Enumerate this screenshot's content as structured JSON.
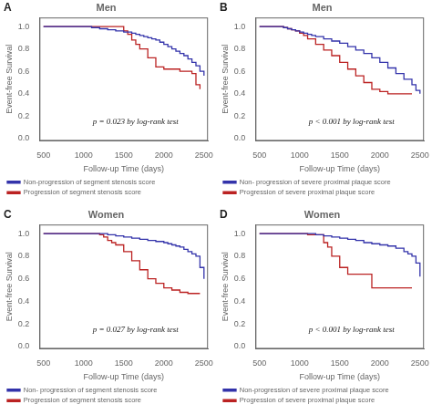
{
  "chart_data": [
    {
      "type": "step",
      "title": "Men",
      "annotations": [
        "A",
        "p = 0.023 by log-rank test"
      ],
      "xlabel": "Follow-up Time (days)",
      "ylabel": "Event-free Survival",
      "xlim": [
        450,
        2550
      ],
      "ylim": [
        -0.02,
        1.08
      ],
      "xticks": [
        500,
        1000,
        1500,
        2000,
        2500
      ],
      "yticks": [
        {
          "value": 0.0,
          "label": "0.0"
        },
        0.2,
        0.4,
        0.6,
        0.8,
        {
          "value": 1.0,
          "label": "1.0"
        }
      ],
      "grid": false,
      "legend": "lower left",
      "series": [
        {
          "name": "Non-progression of segment stenosis score",
          "color": "#3333aa",
          "x": [
            500,
            1000,
            1100,
            1200,
            1300,
            1400,
            1450,
            1500,
            1550,
            1600,
            1650,
            1700,
            1750,
            1800,
            1850,
            1900,
            1950,
            2000,
            2050,
            2100,
            2150,
            2200,
            2250,
            2300,
            2350,
            2400,
            2450,
            2500
          ],
          "values": [
            1.0,
            1.0,
            0.99,
            0.98,
            0.97,
            0.96,
            0.96,
            0.95,
            0.95,
            0.94,
            0.93,
            0.92,
            0.91,
            0.9,
            0.89,
            0.88,
            0.86,
            0.84,
            0.82,
            0.8,
            0.78,
            0.76,
            0.74,
            0.71,
            0.68,
            0.65,
            0.6,
            0.56
          ]
        },
        {
          "name": "Progression of segment stenosis score",
          "color": "#bb2222",
          "x": [
            500,
            1000,
            1100,
            1200,
            1300,
            1400,
            1450,
            1500,
            1550,
            1600,
            1650,
            1700,
            1800,
            1900,
            2000,
            2100,
            2200,
            2300,
            2350,
            2400,
            2450
          ],
          "values": [
            1.0,
            1.0,
            1.0,
            1.0,
            1.0,
            1.0,
            1.0,
            0.96,
            0.93,
            0.88,
            0.84,
            0.8,
            0.72,
            0.64,
            0.62,
            0.62,
            0.6,
            0.6,
            0.58,
            0.48,
            0.44
          ]
        }
      ]
    },
    {
      "type": "step",
      "title": "Men",
      "annotations": [
        "B",
        "p < 0.001 by log-rank test"
      ],
      "xlabel": "Follow-up Time (days)",
      "ylabel": "Event-free Survival",
      "xlim": [
        450,
        2550
      ],
      "ylim": [
        -0.02,
        1.08
      ],
      "xticks": [
        500,
        1000,
        1500,
        2000,
        2500
      ],
      "yticks": [
        {
          "value": 0.0,
          "label": "0.0"
        },
        0.2,
        0.4,
        0.6,
        0.8,
        {
          "value": 1.0,
          "label": "1.0"
        }
      ],
      "grid": false,
      "legend": "lower left",
      "series": [
        {
          "name": "Non- progression of severe proximal plaque score",
          "color": "#3333aa",
          "x": [
            500,
            700,
            800,
            850,
            900,
            950,
            1000,
            1050,
            1100,
            1150,
            1200,
            1300,
            1400,
            1500,
            1600,
            1700,
            1800,
            1900,
            2000,
            2100,
            2200,
            2300,
            2400,
            2450,
            2500
          ],
          "values": [
            1.0,
            1.0,
            0.99,
            0.98,
            0.97,
            0.96,
            0.95,
            0.94,
            0.93,
            0.92,
            0.91,
            0.89,
            0.87,
            0.85,
            0.82,
            0.79,
            0.76,
            0.72,
            0.68,
            0.63,
            0.58,
            0.53,
            0.48,
            0.43,
            0.4
          ]
        },
        {
          "name": "Progression of severe proximal plaque score",
          "color": "#bb2222",
          "x": [
            500,
            700,
            800,
            850,
            900,
            950,
            1000,
            1050,
            1100,
            1200,
            1300,
            1400,
            1500,
            1600,
            1700,
            1800,
            1900,
            2000,
            2100,
            2200,
            2300,
            2400
          ],
          "values": [
            1.0,
            1.0,
            0.99,
            0.98,
            0.97,
            0.96,
            0.94,
            0.92,
            0.89,
            0.84,
            0.79,
            0.74,
            0.68,
            0.62,
            0.56,
            0.5,
            0.44,
            0.42,
            0.4,
            0.4,
            0.4,
            0.4
          ]
        }
      ]
    },
    {
      "type": "step",
      "title": "Women",
      "annotations": [
        "C",
        "p = 0.027 by log-rank test"
      ],
      "xlabel": "Follow-up Time (days)",
      "ylabel": "Event-free Survival",
      "xlim": [
        450,
        2550
      ],
      "ylim": [
        -0.02,
        1.08
      ],
      "xticks": [
        500,
        1000,
        1500,
        2000,
        2500
      ],
      "yticks": [
        {
          "value": 0.0,
          "label": "0.0"
        },
        0.2,
        0.4,
        0.6,
        0.8,
        {
          "value": 1.0,
          "label": "1.0"
        }
      ],
      "grid": false,
      "legend": "lower left",
      "series": [
        {
          "name": "Non- progression of segment stenosis score",
          "color": "#3333aa",
          "x": [
            500,
            1100,
            1200,
            1300,
            1400,
            1500,
            1600,
            1700,
            1800,
            1900,
            2000,
            2050,
            2100,
            2150,
            2200,
            2250,
            2300,
            2350,
            2400,
            2450,
            2500
          ],
          "values": [
            1.0,
            1.0,
            1.0,
            0.99,
            0.98,
            0.97,
            0.96,
            0.95,
            0.94,
            0.93,
            0.92,
            0.91,
            0.9,
            0.89,
            0.88,
            0.86,
            0.84,
            0.82,
            0.8,
            0.7,
            0.6
          ]
        },
        {
          "name": "Progression of segment stenosis score",
          "color": "#bb2222",
          "x": [
            500,
            1100,
            1200,
            1250,
            1300,
            1350,
            1400,
            1500,
            1600,
            1700,
            1800,
            1900,
            2000,
            2100,
            2200,
            2300,
            2400,
            2450
          ],
          "values": [
            1.0,
            1.0,
            0.99,
            0.97,
            0.94,
            0.92,
            0.9,
            0.84,
            0.76,
            0.68,
            0.6,
            0.56,
            0.52,
            0.5,
            0.48,
            0.47,
            0.47,
            0.47
          ]
        }
      ]
    },
    {
      "type": "step",
      "title": "Women",
      "annotations": [
        "D",
        "p < 0.001 by log-rank test"
      ],
      "xlabel": "Follow-up Time (days)",
      "ylabel": "Event-free Survival",
      "xlim": [
        450,
        2550
      ],
      "ylim": [
        -0.02,
        1.08
      ],
      "xticks": [
        500,
        1000,
        1500,
        2000,
        2500
      ],
      "yticks": [
        {
          "value": 0.0,
          "label": "0.0"
        },
        0.2,
        0.4,
        0.6,
        0.8,
        {
          "value": 1.0,
          "label": "1.0"
        }
      ],
      "grid": false,
      "legend": "lower left",
      "series": [
        {
          "name": "Non-progression of severe proximal plaque score",
          "color": "#3333aa",
          "x": [
            500,
            1000,
            1100,
            1200,
            1300,
            1400,
            1500,
            1600,
            1700,
            1800,
            1900,
            2000,
            2100,
            2200,
            2300,
            2350,
            2400,
            2450,
            2500
          ],
          "values": [
            1.0,
            1.0,
            1.0,
            0.99,
            0.98,
            0.97,
            0.96,
            0.95,
            0.94,
            0.92,
            0.91,
            0.9,
            0.89,
            0.87,
            0.84,
            0.82,
            0.8,
            0.74,
            0.62
          ]
        },
        {
          "name": "Progression of severe proximal plaque score",
          "color": "#bb2222",
          "x": [
            500,
            1000,
            1100,
            1200,
            1300,
            1350,
            1400,
            1500,
            1600,
            1700,
            1800,
            1900,
            2000,
            2100,
            2200,
            2300,
            2400
          ],
          "values": [
            1.0,
            1.0,
            0.99,
            0.99,
            0.92,
            0.88,
            0.8,
            0.7,
            0.64,
            0.64,
            0.64,
            0.52,
            0.52,
            0.52,
            0.52,
            0.52,
            0.52
          ]
        }
      ]
    }
  ]
}
